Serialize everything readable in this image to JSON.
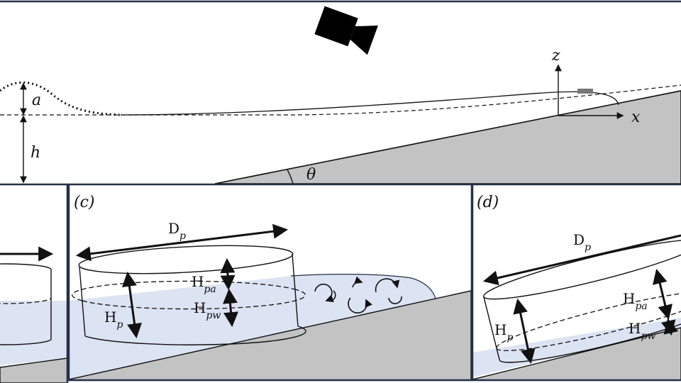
{
  "top_panel": {
    "wave_amplitude_label": "a",
    "depth_label": "h",
    "slope_angle_label": "θ",
    "axis_z_label": "z",
    "axis_x_label": "x",
    "camera_icon": "video-camera-icon"
  },
  "panel_c": {
    "tag": "(c)",
    "diameter_label": {
      "main": "D",
      "sub": "p"
    },
    "height_label": {
      "main": "H",
      "sub": "p"
    },
    "air_height_label": {
      "main": "H",
      "sub": "pa"
    },
    "water_height_label": {
      "main": "H",
      "sub": "pw"
    },
    "vortex_icon": "circular-arrow-icon"
  },
  "panel_d": {
    "tag": "(d)",
    "diameter_label": {
      "main": "D",
      "sub": "p"
    },
    "height_label": {
      "main": "H",
      "sub": "p"
    },
    "air_height_label": {
      "main": "H",
      "sub": "pa"
    },
    "water_height_label": {
      "main": "H",
      "sub": "pw"
    }
  },
  "colors": {
    "water": "#dce3f2",
    "slope": "#c3c3c3",
    "frame": "#243047",
    "ink": "#111111"
  }
}
